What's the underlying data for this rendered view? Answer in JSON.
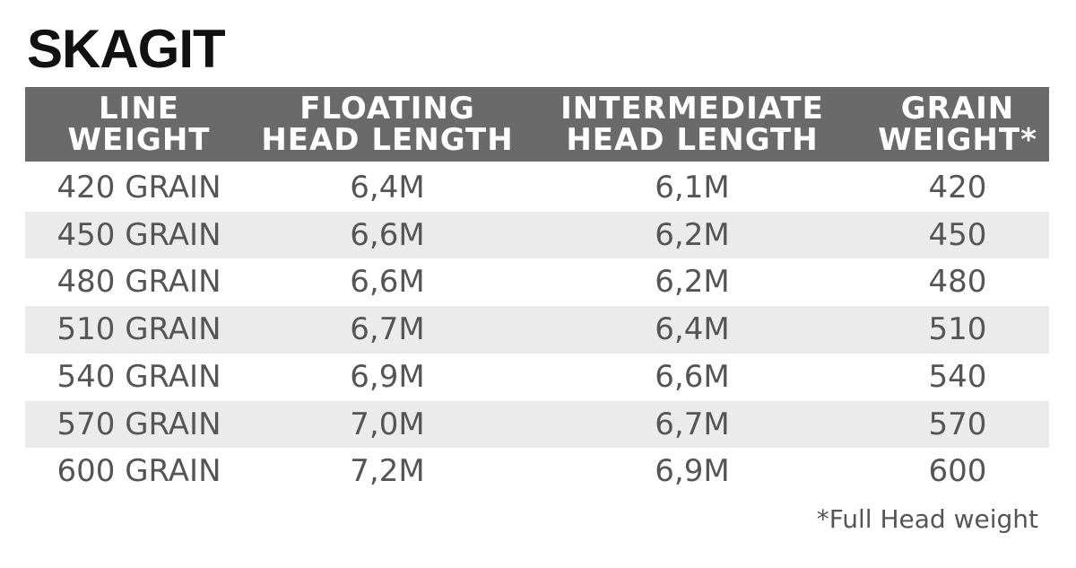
{
  "title": "SKAGIT",
  "table": {
    "headers": [
      [
        "LINE",
        "WEIGHT"
      ],
      [
        "FLOATING",
        "HEAD LENGTH"
      ],
      [
        "INTERMEDIATE",
        "HEAD LENGTH"
      ],
      [
        "GRAIN",
        "WEIGHT*"
      ]
    ],
    "rows": [
      [
        "420 GRAIN",
        "6,4M",
        "6,1M",
        "420"
      ],
      [
        "450 GRAIN",
        "6,6M",
        "6,2M",
        "450"
      ],
      [
        "480 GRAIN",
        "6,6M",
        "6,2M",
        "480"
      ],
      [
        "510 GRAIN",
        "6,7M",
        "6,4M",
        "510"
      ],
      [
        "540 GRAIN",
        "6,9M",
        "6,6M",
        "540"
      ],
      [
        "570 GRAIN",
        "7,0M",
        "6,7M",
        "570"
      ],
      [
        "600 GRAIN",
        "7,2M",
        "6,9M",
        "600"
      ]
    ]
  },
  "footnote": "*Full Head weight"
}
